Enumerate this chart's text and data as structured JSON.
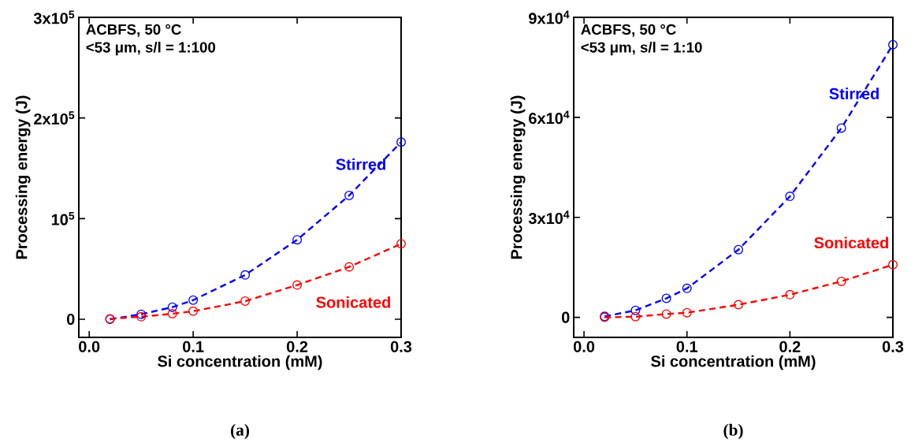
{
  "chart_data": [
    {
      "type": "scatter",
      "xlabel": "Si concentration (mM)",
      "ylabel": "Processing energy (J)",
      "xlim": [
        -0.01,
        0.3
      ],
      "ylim": [
        -18000,
        300000
      ],
      "xticks": [
        {
          "value": 0,
          "label": "0.0"
        },
        0.1,
        0.2,
        0.3
      ],
      "yticks": [
        0,
        {
          "value": 100000,
          "label": "10$^{5}$"
        },
        {
          "value": 200000,
          "label": "2x10$^{5}$"
        },
        {
          "value": 300000,
          "label": "3x10$^{5}$"
        }
      ],
      "annotations": [
        "ACBFS, 50 °C",
        "<53 μm, s/l = 1:100",
        "(a)"
      ],
      "series": [
        {
          "name": "Stirred",
          "marker": "circle",
          "color": "#0000ff",
          "x": [
            0.02,
            0.05,
            0.08,
            0.1,
            0.15,
            0.2,
            0.25,
            0.3
          ],
          "values": [
            0,
            5000,
            12000,
            19000,
            44000,
            79000,
            123000,
            176000
          ]
        },
        {
          "type": "line",
          "line_style": "dashed",
          "color": "#0000ff",
          "x": [
            0.02,
            0.05,
            0.08,
            0.1,
            0.15,
            0.2,
            0.25,
            0.3
          ],
          "values": [
            0,
            5000,
            12000,
            19000,
            44000,
            79000,
            123000,
            176000
          ]
        },
        {
          "name": "Sonicated",
          "marker": "circle",
          "color": "#ff0000",
          "x": [
            0.02,
            0.05,
            0.08,
            0.1,
            0.15,
            0.2,
            0.25,
            0.3
          ],
          "values": [
            500,
            2500,
            5500,
            8000,
            18000,
            34000,
            52000,
            75000
          ]
        },
        {
          "type": "line",
          "line_style": "dashed",
          "color": "#ff0000",
          "x": [
            0.02,
            0.05,
            0.08,
            0.1,
            0.15,
            0.2,
            0.25,
            0.3
          ],
          "values": [
            500,
            2500,
            5500,
            8000,
            18000,
            34000,
            52000,
            75000
          ]
        }
      ]
    },
    {
      "type": "scatter",
      "xlabel": "Si concentration (mM)",
      "ylabel": "Processing energy (J)",
      "xlim": [
        -0.01,
        0.3
      ],
      "ylim": [
        -6000,
        90000
      ],
      "xticks": [
        {
          "value": 0,
          "label": "0.0"
        },
        0.1,
        0.2,
        0.3
      ],
      "yticks": [
        0,
        {
          "value": 30000,
          "label": "3x10$^{4}$"
        },
        {
          "value": 60000,
          "label": "6x10$^{4}$"
        },
        {
          "value": 90000,
          "label": "9x10$^{4}$"
        }
      ],
      "annotations": [
        "ACBFS, 50 °C",
        "<53 μm, s/l = 1:10",
        "(b)"
      ],
      "series": [
        {
          "name": "Stirred",
          "marker": "circle",
          "color": "#0000ff",
          "x": [
            0.02,
            0.05,
            0.08,
            0.1,
            0.15,
            0.2,
            0.25,
            0.3
          ],
          "values": [
            300,
            2100,
            5700,
            8700,
            20300,
            36300,
            56800,
            81800
          ]
        },
        {
          "type": "line",
          "line_style": "dashed",
          "color": "#0000ff",
          "x": [
            0.02,
            0.05,
            0.08,
            0.1,
            0.15,
            0.2,
            0.25,
            0.3
          ],
          "values": [
            300,
            2100,
            5700,
            8700,
            20300,
            36300,
            56800,
            81800
          ]
        },
        {
          "name": "Sonicated",
          "marker": "circle",
          "color": "#ff0000",
          "x": [
            0.02,
            0.05,
            0.08,
            0.1,
            0.15,
            0.2,
            0.25,
            0.3
          ],
          "values": [
            0,
            200,
            1000,
            1400,
            3800,
            6800,
            10800,
            15800
          ]
        },
        {
          "type": "line",
          "line_style": "dashed",
          "color": "#ff0000",
          "x": [
            0.02,
            0.05,
            0.08,
            0.1,
            0.15,
            0.2,
            0.25,
            0.3
          ],
          "values": [
            0,
            200,
            1000,
            1400,
            3800,
            6800,
            10800,
            15800
          ]
        }
      ]
    }
  ]
}
